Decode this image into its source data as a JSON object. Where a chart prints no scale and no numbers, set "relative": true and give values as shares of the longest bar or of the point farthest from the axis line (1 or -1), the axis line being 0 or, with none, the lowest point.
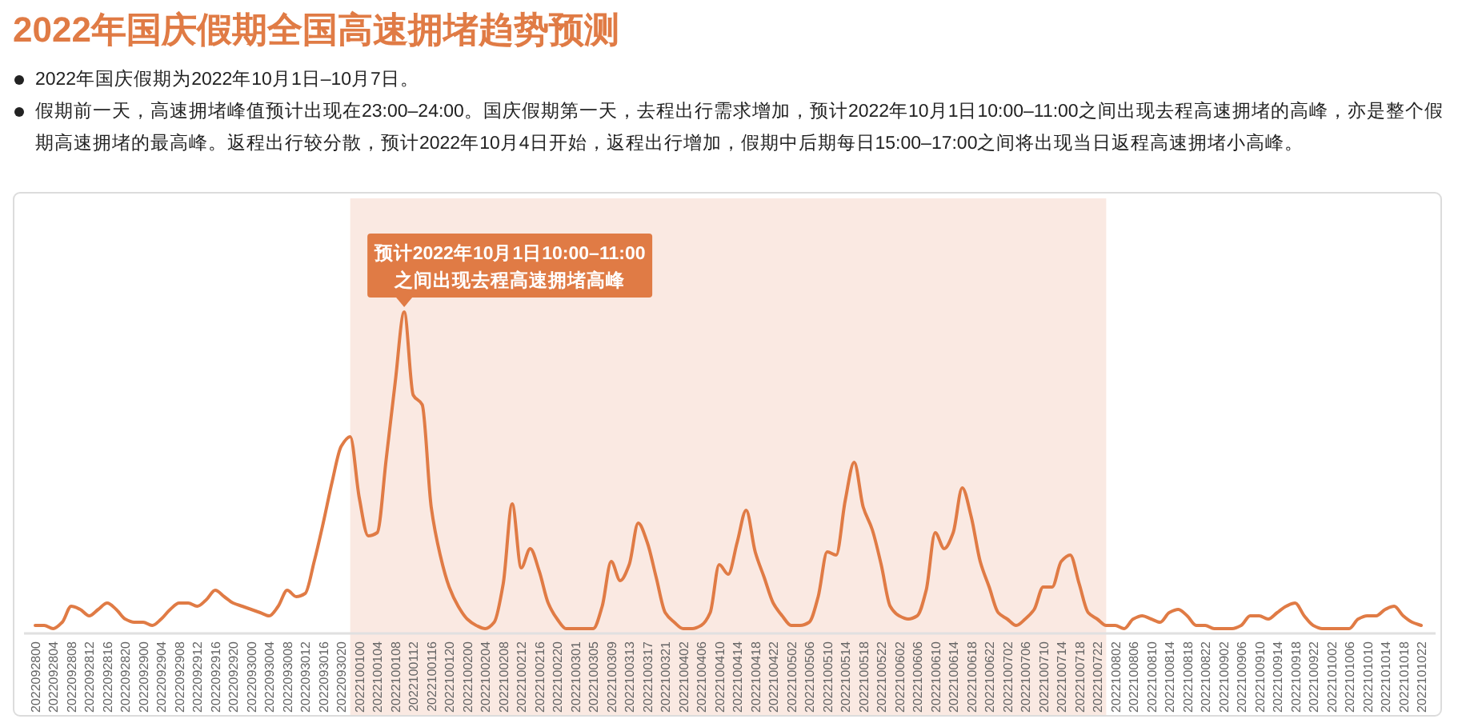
{
  "chart_data": {
    "type": "line",
    "title": "2022年国庆假期全国高速拥堵趋势预测",
    "annotations": [
      "2022年国庆假期为2022年10月1日–10月7日。",
      "假期前一天，高速拥堵峰值预计出现在23:00–24:00。国庆假期第一天，去程出行需求增加，预计2022年10月1日10:00–11:00之间出现去程高速拥堵的高峰，亦是整个假期高速拥堵的最高峰。返程出行较分散，预计2022年10月4日开始，返程出行增加，假期中后期每日15:00–17:00之间将出现当日返程高速拥堵小高峰。",
      "预计2022年10月1日10:00–11:00\n之间出现去程高速拥堵高峰"
    ],
    "relative": true,
    "marker": "none",
    "line_style": "solid",
    "categories": [
      "2022092800",
      null,
      "2022092804",
      null,
      "2022092808",
      null,
      "2022092812",
      null,
      "2022092816",
      null,
      "2022092820",
      null,
      "2022092900",
      null,
      "2022092904",
      null,
      "2022092908",
      null,
      "2022092912",
      null,
      "2022092916",
      null,
      "2022092920",
      null,
      "2022093000",
      null,
      "2022093004",
      null,
      "2022093008",
      null,
      "2022093012",
      null,
      "2022093016",
      null,
      "2022093020",
      null,
      "2022100100",
      null,
      "2022100104",
      null,
      "2022100108",
      null,
      "2022100112",
      null,
      "2022100116",
      null,
      "2022100120",
      null,
      "2022100200",
      null,
      "2022100204",
      null,
      "2022100208",
      null,
      "2022100212",
      null,
      "2022100216",
      null,
      "2022100220",
      null,
      "2022100301",
      null,
      "2022100305",
      null,
      "2022100309",
      null,
      "2022100313",
      null,
      "2022100317",
      null,
      "2022100321",
      null,
      "2022100402",
      null,
      "2022100406",
      null,
      "2022100410",
      null,
      "2022100414",
      null,
      "2022100418",
      null,
      "2022100422",
      null,
      "2022100502",
      null,
      "2022100506",
      null,
      "2022100510",
      null,
      "2022100514",
      null,
      "2022100518",
      null,
      "2022100522",
      null,
      "2022100602",
      null,
      "2022100606",
      null,
      "2022100610",
      null,
      "2022100614",
      null,
      "2022100618",
      null,
      "2022100622",
      null,
      "2022100702",
      null,
      "2022100706",
      null,
      "2022100710",
      null,
      "2022100714",
      null,
      "2022100718",
      null,
      "2022100722",
      null,
      "2022100802",
      null,
      "2022100806",
      null,
      "2022100810",
      null,
      "2022100814",
      null,
      "2022100818",
      null,
      "2022100822",
      null,
      "2022100902",
      null,
      "2022100906",
      null,
      "2022100910",
      null,
      "2022100914",
      null,
      "2022100918",
      null,
      "2022100922",
      null,
      "2022101002",
      null,
      "2022101006",
      null,
      "2022101010",
      null,
      "2022101014",
      null,
      "2022101018",
      null,
      "2022101022"
    ],
    "bands": [
      {
        "axis": "x",
        "from": "2022100100",
        "to": "2022100722",
        "color": "#fae9e2"
      }
    ],
    "series": [
      {
        "color": "#e07b45",
        "values": [
          0.02,
          0.02,
          0.01,
          0.03,
          0.08,
          0.07,
          0.05,
          0.07,
          0.09,
          0.07,
          0.04,
          0.03,
          0.03,
          0.02,
          0.04,
          0.07,
          0.09,
          0.09,
          0.08,
          0.1,
          0.13,
          0.11,
          0.09,
          0.08,
          0.07,
          0.06,
          0.05,
          0.08,
          0.13,
          0.11,
          0.12,
          0.22,
          0.34,
          0.47,
          0.58,
          0.61,
          0.42,
          0.3,
          0.31,
          0.54,
          0.78,
          1.0,
          0.74,
          0.71,
          0.39,
          0.24,
          0.14,
          0.08,
          0.04,
          0.02,
          0.01,
          0.03,
          0.15,
          0.4,
          0.2,
          0.26,
          0.19,
          0.09,
          0.04,
          0.01,
          0.01,
          0.01,
          0.01,
          0.08,
          0.22,
          0.16,
          0.21,
          0.34,
          0.28,
          0.17,
          0.06,
          0.03,
          0.01,
          0.01,
          0.02,
          0.06,
          0.21,
          0.18,
          0.28,
          0.38,
          0.25,
          0.17,
          0.09,
          0.05,
          0.02,
          0.02,
          0.03,
          0.11,
          0.25,
          0.24,
          0.41,
          0.53,
          0.39,
          0.32,
          0.21,
          0.08,
          0.05,
          0.04,
          0.05,
          0.13,
          0.31,
          0.26,
          0.31,
          0.45,
          0.36,
          0.22,
          0.14,
          0.06,
          0.04,
          0.02,
          0.04,
          0.07,
          0.14,
          0.14,
          0.22,
          0.24,
          0.15,
          0.06,
          0.04,
          0.02,
          0.02,
          0.01,
          0.04,
          0.05,
          0.04,
          0.03,
          0.06,
          0.07,
          0.05,
          0.02,
          0.02,
          0.01,
          0.01,
          0.01,
          0.02,
          0.05,
          0.05,
          0.04,
          0.06,
          0.08,
          0.09,
          0.05,
          0.02,
          0.01,
          0.01,
          0.01,
          0.01,
          0.04,
          0.05,
          0.05,
          0.07,
          0.08,
          0.05,
          0.03,
          0.02
        ]
      }
    ]
  }
}
